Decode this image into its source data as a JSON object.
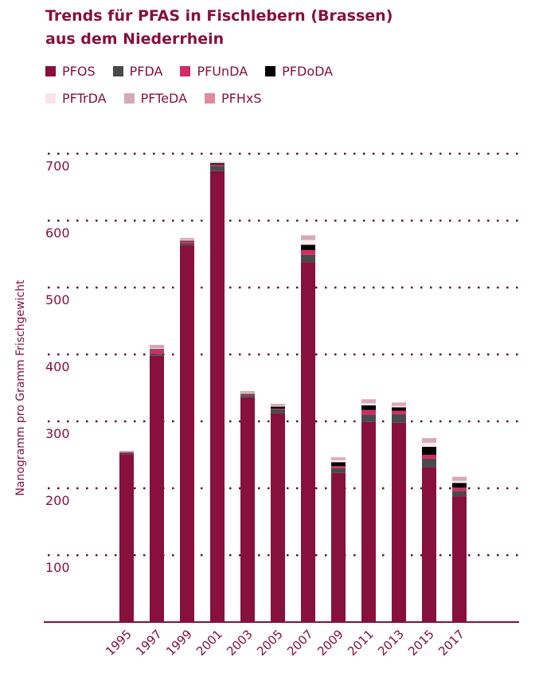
{
  "title_line1": "Trends für PFAS in Fischlebern (Brassen)",
  "title_line2": "aus dem Niederrhein",
  "chart_data": {
    "type": "bar",
    "stacked": true,
    "title": "Trends für PFAS in Fischlebern (Brassen) aus dem Niederrhein",
    "xlabel": "",
    "ylabel": "Nanogramm pro Gramm Frischgewicht",
    "ylim": [
      0,
      700
    ],
    "yticks": [
      100,
      200,
      300,
      400,
      500,
      600,
      700
    ],
    "grid": true,
    "legend_position": "top-left",
    "categories": [
      "1995",
      "1997",
      "1999",
      "2001",
      "2003",
      "2005",
      "2007",
      "2009",
      "2011",
      "2013",
      "2015",
      "2017"
    ],
    "series": [
      {
        "name": "PFOS",
        "color": "#87103d",
        "values": [
          251,
          398,
          563,
          674,
          336,
          312,
          538,
          223,
          299,
          298,
          231,
          188
        ]
      },
      {
        "name": "PFDA",
        "color": "#4a4a4a",
        "values": [
          2,
          3,
          3,
          8,
          3,
          6,
          11,
          7,
          11,
          13,
          13,
          8
        ]
      },
      {
        "name": "PFUnDA",
        "color": "#d42b64",
        "values": [
          1,
          6,
          3,
          2,
          1,
          1,
          7,
          3,
          7,
          5,
          6,
          5
        ]
      },
      {
        "name": "PFDoDA",
        "color": "#000000",
        "values": [
          0,
          1,
          1,
          2,
          1,
          3,
          8,
          6,
          7,
          5,
          12,
          7
        ]
      },
      {
        "name": "PFTrDA",
        "color": "#fbe9ee",
        "values": [
          0,
          1,
          1,
          1,
          1,
          1,
          7,
          3,
          3,
          2,
          6,
          3
        ]
      },
      {
        "name": "PFTeDA",
        "color": "#d6aab8",
        "values": [
          2,
          3,
          2,
          1,
          2,
          2,
          7,
          3,
          6,
          4,
          7,
          5
        ]
      },
      {
        "name": "PFHxS",
        "color": "#e08a9e",
        "values": [
          0,
          2,
          1,
          0,
          1,
          1,
          0,
          1,
          0,
          1,
          0,
          1
        ]
      }
    ]
  }
}
